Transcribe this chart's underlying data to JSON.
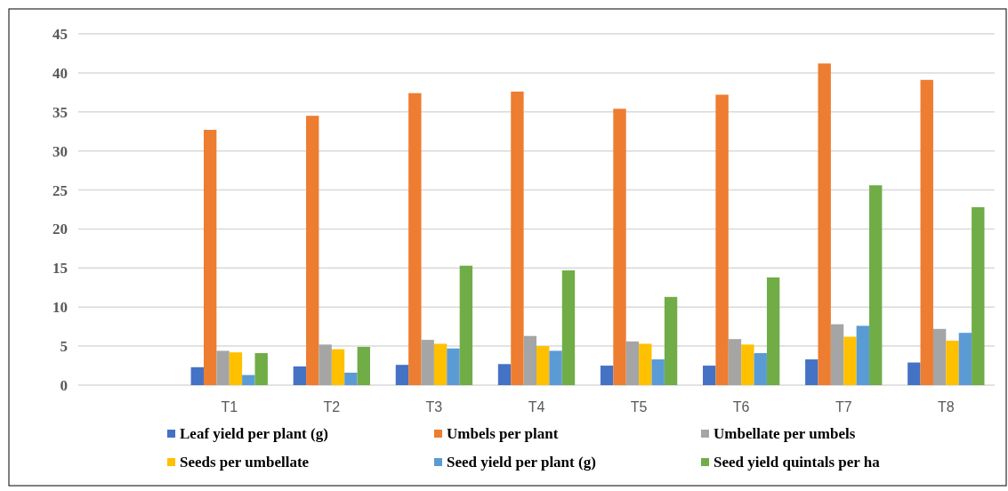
{
  "chart_data": {
    "type": "bar",
    "categories": [
      null,
      "T1",
      "T2",
      "T3",
      "T4",
      "T5",
      "T6",
      "T7",
      "T8"
    ],
    "series": [
      {
        "name": "Leaf yield per plant (g)",
        "color": "#4472c4",
        "values": [
          null,
          2.3,
          2.4,
          2.6,
          2.7,
          2.5,
          2.5,
          3.3,
          2.9
        ]
      },
      {
        "name": "Umbels per plant",
        "color": "#ed7d31",
        "values": [
          null,
          32.7,
          34.5,
          37.4,
          37.6,
          35.4,
          37.2,
          41.2,
          39.1
        ]
      },
      {
        "name": "Umbellate per umbels",
        "color": "#a5a5a5",
        "values": [
          null,
          4.4,
          5.2,
          5.8,
          6.3,
          5.6,
          5.9,
          7.8,
          7.2
        ]
      },
      {
        "name": "Seeds per umbellate",
        "color": "#ffc000",
        "values": [
          null,
          4.2,
          4.6,
          5.3,
          5.0,
          5.3,
          5.2,
          6.2,
          5.7
        ]
      },
      {
        "name": "Seed yield per plant (g)",
        "color": "#5b9bd5",
        "values": [
          null,
          1.3,
          1.6,
          4.7,
          4.4,
          3.3,
          4.1,
          7.6,
          6.7
        ]
      },
      {
        "name": "Seed yield quintals per ha",
        "color": "#70ad47",
        "values": [
          null,
          4.1,
          4.9,
          15.3,
          14.7,
          11.3,
          13.8,
          25.6,
          22.8
        ]
      }
    ],
    "ylim": [
      0,
      45
    ],
    "yticks": [
      0,
      5,
      10,
      15,
      20,
      25,
      30,
      35,
      40,
      45
    ],
    "grid": "y",
    "legend": "bottom"
  }
}
